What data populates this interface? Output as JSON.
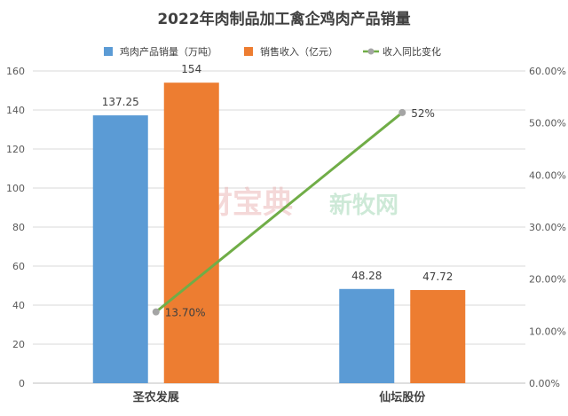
{
  "chart_data": {
    "type": "bar",
    "title": "2022年肉制品加工禽企鸡肉产品销量",
    "categories": [
      "圣农发展",
      "仙坛股份"
    ],
    "series": [
      {
        "name": "鸡肉产品销量（万吨）",
        "kind": "bar",
        "axis": "left",
        "color": "#5b9bd5",
        "values": [
          137.25,
          48.28
        ],
        "labels": [
          "137.25",
          "48.28"
        ]
      },
      {
        "name": "销售收入（亿元）",
        "kind": "bar",
        "axis": "left",
        "color": "#ed7d31",
        "values": [
          154,
          47.72
        ],
        "labels": [
          "154",
          "47.72"
        ]
      },
      {
        "name": "收入同比变化",
        "kind": "line",
        "axis": "right",
        "color": "#70ad47",
        "marker_color": "#a5a5a5",
        "values": [
          0.137,
          0.52
        ],
        "labels": [
          "13.70%",
          "52%"
        ]
      }
    ],
    "y_left": {
      "ylim": [
        0,
        160
      ],
      "ticks": [
        "0",
        "20",
        "40",
        "60",
        "80",
        "100",
        "120",
        "140",
        "160"
      ]
    },
    "y_right": {
      "ylim": [
        0,
        0.6
      ],
      "ticks": [
        "0.00%",
        "10.00%",
        "20.00%",
        "30.00%",
        "40.00%",
        "50.00%",
        "60.00%"
      ]
    },
    "legend_position": "top-center",
    "grid": true,
    "watermarks": [
      "农财宝典",
      "新牧网"
    ]
  }
}
